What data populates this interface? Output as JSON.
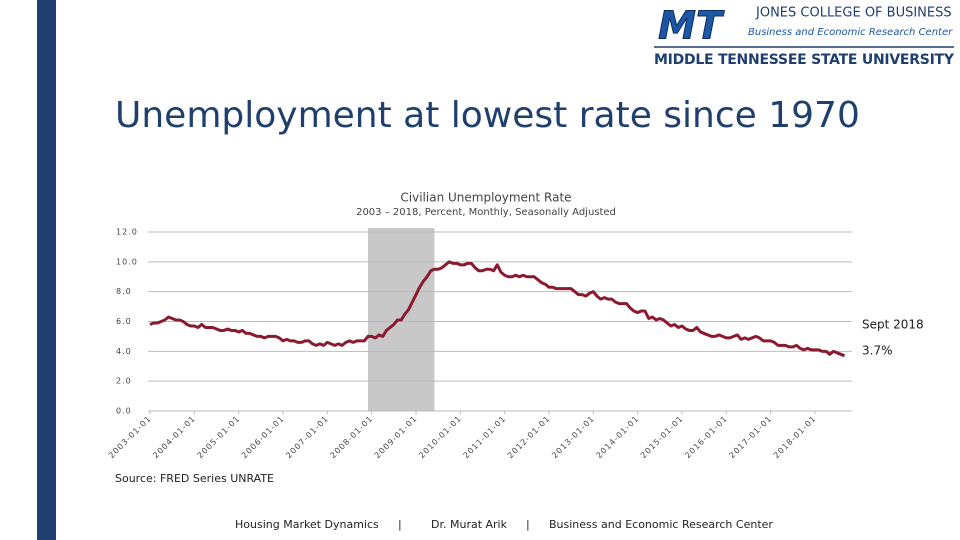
{
  "logo": {
    "mark": "MT",
    "college": "JONES COLLEGE OF BUSINESS",
    "center": "Business and Economic Research Center",
    "university": "MIDDLE TENNESSEE STATE UNIVERSITY"
  },
  "slide_title": "Unemployment at lowest rate since 1970",
  "source": "Source: FRED Series UNRATE",
  "footer": [
    "Housing Market Dynamics",
    "|",
    "Dr. Murat Arik",
    "|",
    "Business and Economic Research Center"
  ],
  "chart_data": {
    "type": "line",
    "title": "Civilian Unemployment Rate",
    "subtitle": "2003 – 2018, Percent, Monthly, Seasonally Adjusted",
    "x": [
      "2003-01-01",
      "2003-02-01",
      "2003-03-01",
      "2003-04-01",
      "2003-05-01",
      "2003-06-01",
      "2003-07-01",
      "2003-08-01",
      "2003-09-01",
      "2003-10-01",
      "2003-11-01",
      "2003-12-01",
      "2004-01-01",
      "2004-02-01",
      "2004-03-01",
      "2004-04-01",
      "2004-05-01",
      "2004-06-01",
      "2004-07-01",
      "2004-08-01",
      "2004-09-01",
      "2004-10-01",
      "2004-11-01",
      "2004-12-01",
      "2005-01-01",
      "2005-02-01",
      "2005-03-01",
      "2005-04-01",
      "2005-05-01",
      "2005-06-01",
      "2005-07-01",
      "2005-08-01",
      "2005-09-01",
      "2005-10-01",
      "2005-11-01",
      "2005-12-01",
      "2006-01-01",
      "2006-02-01",
      "2006-03-01",
      "2006-04-01",
      "2006-05-01",
      "2006-06-01",
      "2006-07-01",
      "2006-08-01",
      "2006-09-01",
      "2006-10-01",
      "2006-11-01",
      "2006-12-01",
      "2007-01-01",
      "2007-02-01",
      "2007-03-01",
      "2007-04-01",
      "2007-05-01",
      "2007-06-01",
      "2007-07-01",
      "2007-08-01",
      "2007-09-01",
      "2007-10-01",
      "2007-11-01",
      "2007-12-01",
      "2008-01-01",
      "2008-02-01",
      "2008-03-01",
      "2008-04-01",
      "2008-05-01",
      "2008-06-01",
      "2008-07-01",
      "2008-08-01",
      "2008-09-01",
      "2008-10-01",
      "2008-11-01",
      "2008-12-01",
      "2009-01-01",
      "2009-02-01",
      "2009-03-01",
      "2009-04-01",
      "2009-05-01",
      "2009-06-01",
      "2009-07-01",
      "2009-08-01",
      "2009-09-01",
      "2009-10-01",
      "2009-11-01",
      "2009-12-01",
      "2010-01-01",
      "2010-02-01",
      "2010-03-01",
      "2010-04-01",
      "2010-05-01",
      "2010-06-01",
      "2010-07-01",
      "2010-08-01",
      "2010-09-01",
      "2010-10-01",
      "2010-11-01",
      "2010-12-01",
      "2011-01-01",
      "2011-02-01",
      "2011-03-01",
      "2011-04-01",
      "2011-05-01",
      "2011-06-01",
      "2011-07-01",
      "2011-08-01",
      "2011-09-01",
      "2011-10-01",
      "2011-11-01",
      "2011-12-01",
      "2012-01-01",
      "2012-02-01",
      "2012-03-01",
      "2012-04-01",
      "2012-05-01",
      "2012-06-01",
      "2012-07-01",
      "2012-08-01",
      "2012-09-01",
      "2012-10-01",
      "2012-11-01",
      "2012-12-01",
      "2013-01-01",
      "2013-02-01",
      "2013-03-01",
      "2013-04-01",
      "2013-05-01",
      "2013-06-01",
      "2013-07-01",
      "2013-08-01",
      "2013-09-01",
      "2013-10-01",
      "2013-11-01",
      "2013-12-01",
      "2014-01-01",
      "2014-02-01",
      "2014-03-01",
      "2014-04-01",
      "2014-05-01",
      "2014-06-01",
      "2014-07-01",
      "2014-08-01",
      "2014-09-01",
      "2014-10-01",
      "2014-11-01",
      "2014-12-01",
      "2015-01-01",
      "2015-02-01",
      "2015-03-01",
      "2015-04-01",
      "2015-05-01",
      "2015-06-01",
      "2015-07-01",
      "2015-08-01",
      "2015-09-01",
      "2015-10-01",
      "2015-11-01",
      "2015-12-01",
      "2016-01-01",
      "2016-02-01",
      "2016-03-01",
      "2016-04-01",
      "2016-05-01",
      "2016-06-01",
      "2016-07-01",
      "2016-08-01",
      "2016-09-01",
      "2016-10-01",
      "2016-11-01",
      "2016-12-01",
      "2017-01-01",
      "2017-02-01",
      "2017-03-01",
      "2017-04-01",
      "2017-05-01",
      "2017-06-01",
      "2017-07-01",
      "2017-08-01",
      "2017-09-01",
      "2017-10-01",
      "2017-11-01",
      "2017-12-01",
      "2018-01-01",
      "2018-02-01",
      "2018-03-01",
      "2018-04-01",
      "2018-05-01",
      "2018-06-01",
      "2018-07-01",
      "2018-08-01",
      "2018-09-01"
    ],
    "series": [
      {
        "name": "UNRATE",
        "color": "#8b1a2e",
        "values": [
          5.8,
          5.9,
          5.9,
          6.0,
          6.1,
          6.3,
          6.2,
          6.1,
          6.1,
          6.0,
          5.8,
          5.7,
          5.7,
          5.6,
          5.8,
          5.6,
          5.6,
          5.6,
          5.5,
          5.4,
          5.4,
          5.5,
          5.4,
          5.4,
          5.3,
          5.4,
          5.2,
          5.2,
          5.1,
          5.0,
          5.0,
          4.9,
          5.0,
          5.0,
          5.0,
          4.9,
          4.7,
          4.8,
          4.7,
          4.7,
          4.6,
          4.6,
          4.7,
          4.7,
          4.5,
          4.4,
          4.5,
          4.4,
          4.6,
          4.5,
          4.4,
          4.5,
          4.4,
          4.6,
          4.7,
          4.6,
          4.7,
          4.7,
          4.7,
          5.0,
          5.0,
          4.9,
          5.1,
          5.0,
          5.4,
          5.6,
          5.8,
          6.1,
          6.1,
          6.5,
          6.8,
          7.3,
          7.8,
          8.3,
          8.7,
          9.0,
          9.4,
          9.5,
          9.5,
          9.6,
          9.8,
          10.0,
          9.9,
          9.9,
          9.8,
          9.8,
          9.9,
          9.9,
          9.6,
          9.4,
          9.4,
          9.5,
          9.5,
          9.4,
          9.8,
          9.3,
          9.1,
          9.0,
          9.0,
          9.1,
          9.0,
          9.1,
          9.0,
          9.0,
          9.0,
          8.8,
          8.6,
          8.5,
          8.3,
          8.3,
          8.2,
          8.2,
          8.2,
          8.2,
          8.2,
          8.0,
          7.8,
          7.8,
          7.7,
          7.9,
          8.0,
          7.7,
          7.5,
          7.6,
          7.5,
          7.5,
          7.3,
          7.2,
          7.2,
          7.2,
          6.9,
          6.7,
          6.6,
          6.7,
          6.7,
          6.2,
          6.3,
          6.1,
          6.2,
          6.1,
          5.9,
          5.7,
          5.8,
          5.6,
          5.7,
          5.5,
          5.4,
          5.4,
          5.6,
          5.3,
          5.2,
          5.1,
          5.0,
          5.0,
          5.1,
          5.0,
          4.9,
          4.9,
          5.0,
          5.1,
          4.8,
          4.9,
          4.8,
          4.9,
          5.0,
          4.9,
          4.7,
          4.7,
          4.7,
          4.6,
          4.4,
          4.4,
          4.4,
          4.3,
          4.3,
          4.4,
          4.2,
          4.1,
          4.2,
          4.1,
          4.1,
          4.1,
          4.0,
          4.0,
          3.8,
          4.0,
          3.9,
          3.8,
          3.7
        ]
      }
    ],
    "xticks": [
      "2003-01-01",
      "2004-01-01",
      "2005-01-01",
      "2006-01-01",
      "2007-01-01",
      "2008-01-01",
      "2009-01-01",
      "2010-01-01",
      "2011-01-01",
      "2012-01-01",
      "2013-01-01",
      "2014-01-01",
      "2015-01-01",
      "2016-01-01",
      "2017-01-01",
      "2018-01-01"
    ],
    "ylim": [
      0,
      12
    ],
    "yticks": [
      {
        "value": 0,
        "label": "0.0"
      },
      {
        "value": 2,
        "label": "2.0"
      },
      {
        "value": 4,
        "label": "4.0"
      },
      {
        "value": 6,
        "label": "6.0"
      },
      {
        "value": 8,
        "label": "8.0"
      },
      {
        "value": 10,
        "label": "10.0"
      },
      {
        "value": 12,
        "label": "12.0"
      }
    ],
    "grid": true,
    "shaded_region": {
      "from": "2007-12-01",
      "to": "2009-06-01",
      "color": "#c8c8c8"
    },
    "annotations": [
      "Sept 2018",
      "3.7%"
    ]
  }
}
